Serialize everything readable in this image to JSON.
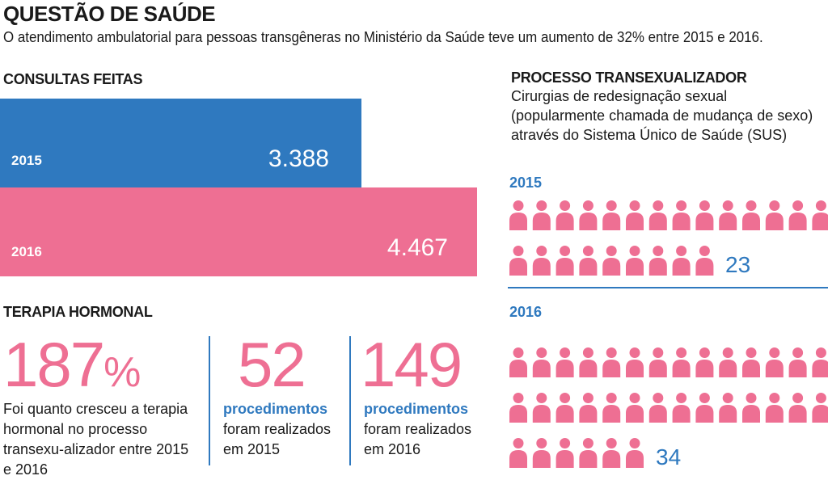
{
  "header": {
    "title": "QUESTÃO DE SAÚDE",
    "subtitle": "O atendimento ambulatorial para pessoas transgêneras no Ministério da Saúde teve um aumento de 32% entre 2015 e 2016."
  },
  "consultas": {
    "heading": "CONSULTAS FEITAS",
    "rows": [
      {
        "year": "2015",
        "value_label": "3.388"
      },
      {
        "year": "2016",
        "value_label": "4.467"
      }
    ]
  },
  "processo": {
    "heading": "PROCESSO TRANSEXUALIZADOR",
    "description": "Cirurgias de redesignação sexual (popularmente chamada de mudança de sexo) através do Sistema Único de Saúde (SUS)",
    "groups": [
      {
        "year": "2015",
        "count_label": "23"
      },
      {
        "year": "2016",
        "count_label": "34"
      }
    ]
  },
  "terapia": {
    "heading": "TERAPIA HORMONAL",
    "growth_number": "187",
    "growth_unit": "%",
    "growth_text": "Foi quanto cresceu a  terapia hormonal no processo transexu-alizador entre 2015 e 2016",
    "stat_2015": {
      "number": "52",
      "bold": "procedimentos",
      "text": "foram realizados em 2015"
    },
    "stat_2016": {
      "number": "149",
      "bold": "procedimentos",
      "text": "foram realizados em 2016"
    }
  },
  "colors": {
    "blue": "#2f79bf",
    "pink": "#ee6f93"
  },
  "chart_data": [
    {
      "type": "bar",
      "title": "CONSULTAS FEITAS",
      "orientation": "horizontal",
      "categories": [
        "2015",
        "2016"
      ],
      "values": [
        3388,
        4467
      ],
      "colors": [
        "#2f79bf",
        "#ee6f93"
      ]
    },
    {
      "type": "bar",
      "title": "PROCESSO TRANSEXUALIZADOR",
      "subtype": "pictogram",
      "categories": [
        "2015",
        "2016"
      ],
      "values": [
        23,
        34
      ],
      "icon": "person-icon"
    },
    {
      "type": "table",
      "title": "TERAPIA HORMONAL",
      "values": [
        187,
        52,
        149
      ]
    }
  ]
}
